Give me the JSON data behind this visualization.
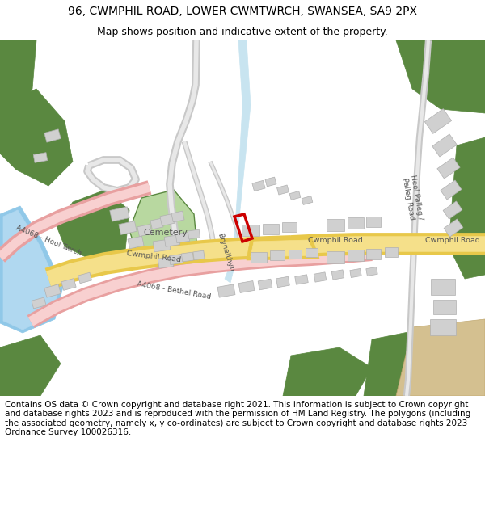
{
  "title_line1": "96, CWMPHIL ROAD, LOWER CWMTWRCH, SWANSEA, SA9 2PX",
  "title_line2": "Map shows position and indicative extent of the property.",
  "footer_text": "Contains OS data © Crown copyright and database right 2021. This information is subject to Crown copyright and database rights 2023 and is reproduced with the permission of HM Land Registry. The polygons (including the associated geometry, namely x, y co-ordinates) are subject to Crown copyright and database rights 2023 Ordnance Survey 100026316.",
  "bg_color": "#ffffff",
  "map_bg": "#ffffff",
  "road_yellow": "#e8c84a",
  "road_yellow_center": "#f5e08a",
  "road_pink": "#e8a0a0",
  "road_pink_center": "#f5c8c8",
  "road_gray": "#c8c8c8",
  "road_gray_center": "#e0e0e0",
  "green_dark": "#5a8840",
  "green_light": "#b8d8a0",
  "water_blue": "#90c8e8",
  "water_blue2": "#b0d8f0",
  "building_gray": "#d0d0d0",
  "building_stroke": "#b0b0b0",
  "plot_red": "#cc0000",
  "title_font": 10,
  "subtitle_font": 9,
  "footer_font": 7.5
}
